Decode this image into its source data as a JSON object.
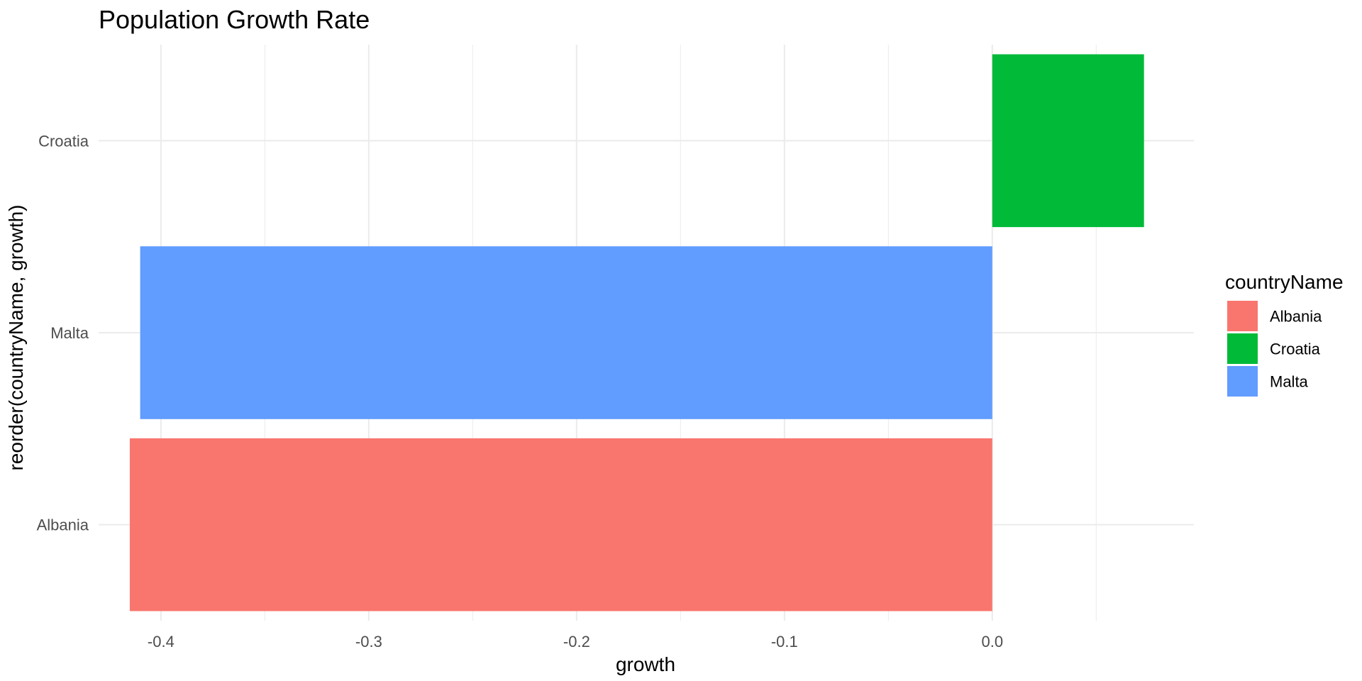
{
  "chart_data": {
    "type": "bar",
    "orientation": "horizontal",
    "title": "Population Growth Rate",
    "xlabel": "growth",
    "ylabel": "reorder(countryName, growth)",
    "categories": [
      "Albania",
      "Malta",
      "Croatia"
    ],
    "values": [
      -0.415,
      -0.41,
      0.073
    ],
    "xlim": [
      -0.43,
      0.097
    ],
    "xticks": [
      -0.4,
      -0.3,
      -0.2,
      -0.1,
      0.0
    ],
    "xtick_labels": [
      "-0.4",
      "-0.3",
      "-0.2",
      "-0.1",
      "0.0"
    ],
    "grid": true,
    "colors": {
      "Albania": "#F8766D",
      "Croatia": "#00BA38",
      "Malta": "#619CFF"
    },
    "legend": {
      "title": "countryName",
      "position": "right",
      "entries": [
        "Albania",
        "Croatia",
        "Malta"
      ]
    }
  }
}
